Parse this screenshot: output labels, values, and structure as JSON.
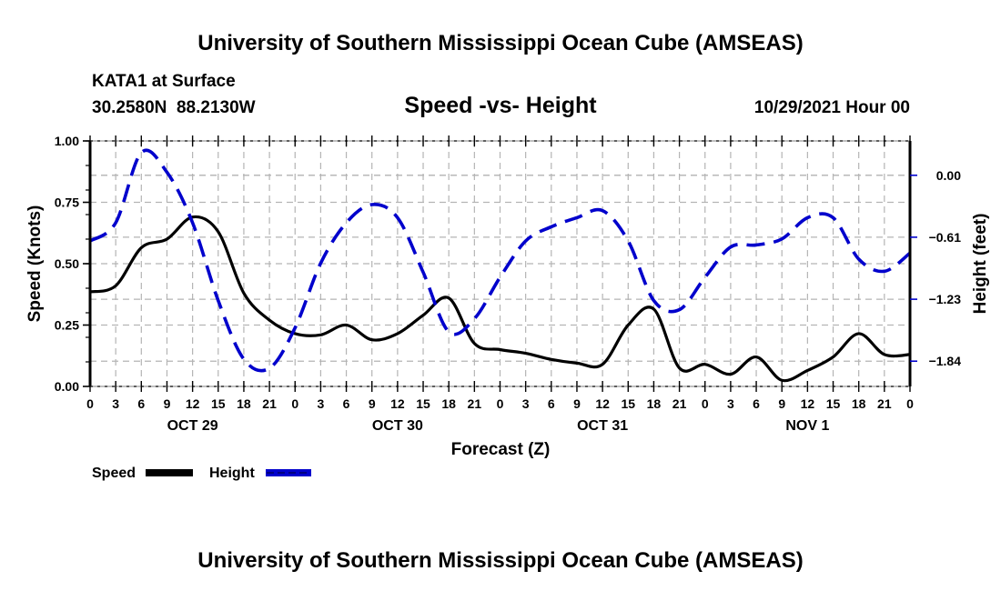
{
  "header": {
    "main_title": "University of Southern Mississippi Ocean Cube (AMSEAS)",
    "station": "KATA1 at Surface",
    "coords": "30.2580N  88.2130W",
    "plot_title": "Speed -vs- Height",
    "datetime": "10/29/2021 Hour 00"
  },
  "footer": {
    "title": "University of Southern Mississippi Ocean Cube (AMSEAS)"
  },
  "legend": {
    "speed_label": "Speed",
    "height_label": "Height"
  },
  "colors": {
    "speed": "#000000",
    "height": "#0000cc",
    "grid": "#b4b4b4"
  },
  "chart_data": {
    "type": "line",
    "title": "Speed -vs- Height",
    "xlabel": "Forecast (Z)",
    "ylabel": "Speed (Knots)",
    "y2label": "Height (feet)",
    "x_units": "hours since 10/29/2021 00Z",
    "xlim": [
      0,
      96
    ],
    "ylim": [
      0,
      1.0
    ],
    "y2lim": [
      -2.09,
      0.34
    ],
    "grid": true,
    "legend_position": "bottom-left",
    "x_tick_labels": [
      "0",
      "3",
      "6",
      "9",
      "12",
      "15",
      "18",
      "21",
      "0",
      "3",
      "6",
      "9",
      "12",
      "15",
      "18",
      "21",
      "0",
      "3",
      "6",
      "9",
      "12",
      "15",
      "18",
      "21",
      "0",
      "3",
      "6",
      "9",
      "12",
      "15",
      "18",
      "21",
      "0"
    ],
    "x_tick_values": [
      0,
      3,
      6,
      9,
      12,
      15,
      18,
      21,
      24,
      27,
      30,
      33,
      36,
      39,
      42,
      45,
      48,
      51,
      54,
      57,
      60,
      63,
      66,
      69,
      72,
      75,
      78,
      81,
      84,
      87,
      90,
      93,
      96
    ],
    "date_labels": [
      {
        "label": "OCT 29",
        "hour": 12
      },
      {
        "label": "OCT 30",
        "hour": 36
      },
      {
        "label": "OCT 31",
        "hour": 60
      },
      {
        "label": "NOV 1",
        "hour": 84
      }
    ],
    "y_ticks": [
      0.0,
      0.25,
      0.5,
      0.75,
      1.0
    ],
    "y_tick_labels": [
      "0.00",
      "0.25",
      "0.50",
      "0.75",
      "1.00"
    ],
    "y2_ticks": [
      0.0,
      -0.613,
      -1.227,
      -1.84
    ],
    "y2_tick_labels": [
      "0.00",
      "−0.61",
      "−1.23",
      "−1.84"
    ],
    "x": [
      0,
      3,
      6,
      9,
      12,
      15,
      18,
      21,
      24,
      27,
      30,
      33,
      36,
      39,
      42,
      45,
      48,
      51,
      54,
      57,
      60,
      63,
      66,
      69,
      72,
      75,
      78,
      81,
      84,
      87,
      90,
      93,
      96
    ],
    "series": [
      {
        "name": "Speed",
        "axis": "left",
        "style": "solid",
        "values": [
          0.385,
          0.41,
          0.565,
          0.6,
          0.69,
          0.63,
          0.38,
          0.27,
          0.215,
          0.21,
          0.25,
          0.19,
          0.215,
          0.29,
          0.36,
          0.175,
          0.15,
          0.135,
          0.11,
          0.095,
          0.09,
          0.25,
          0.315,
          0.075,
          0.09,
          0.05,
          0.12,
          0.025,
          0.065,
          0.12,
          0.215,
          0.13,
          0.13
        ]
      },
      {
        "name": "Height",
        "axis": "right",
        "style": "dashed",
        "values": [
          -0.65,
          -0.47,
          0.225,
          0.03,
          -0.47,
          -1.24,
          -1.82,
          -1.91,
          -1.51,
          -0.87,
          -0.47,
          -0.29,
          -0.42,
          -0.96,
          -1.55,
          -1.42,
          -1.01,
          -0.65,
          -0.51,
          -0.42,
          -0.35,
          -0.65,
          -1.24,
          -1.33,
          -1.01,
          -0.71,
          -0.69,
          -0.63,
          -0.42,
          -0.42,
          -0.83,
          -0.95,
          -0.77
        ]
      }
    ]
  }
}
